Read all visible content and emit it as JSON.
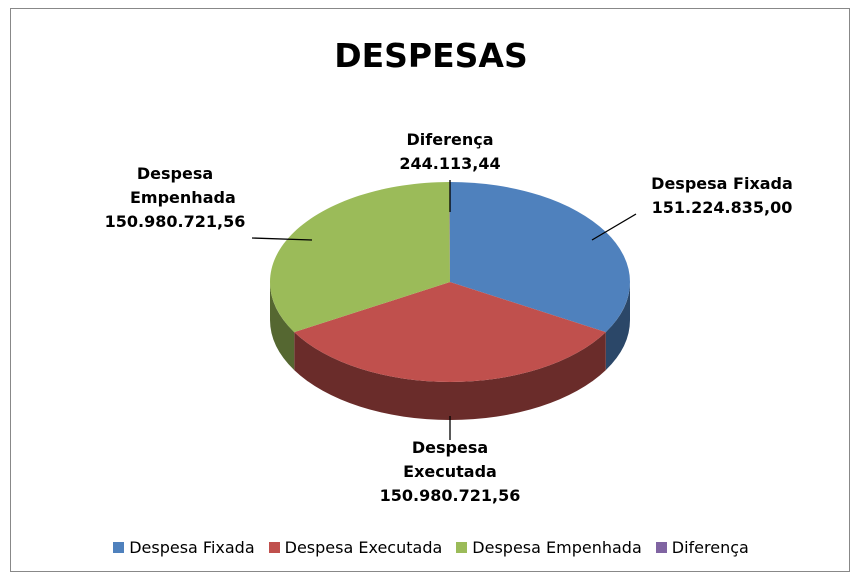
{
  "chart_data": {
    "type": "pie",
    "title": "DESPESAS",
    "categories": [
      "Despesa Fixada",
      "Despesa Executada",
      "Despesa Empenhada",
      "Diferença"
    ],
    "values": [
      151224835.0,
      150980721.56,
      150980721.56,
      244113.44
    ],
    "value_labels": [
      "151.224.835,00",
      "150.980.721,56",
      "150.980.721,56",
      "244.113,44"
    ],
    "colors": [
      "#4f81bd",
      "#c0504d",
      "#9bbb59",
      "#8064a2"
    ],
    "legend": "bottom"
  }
}
